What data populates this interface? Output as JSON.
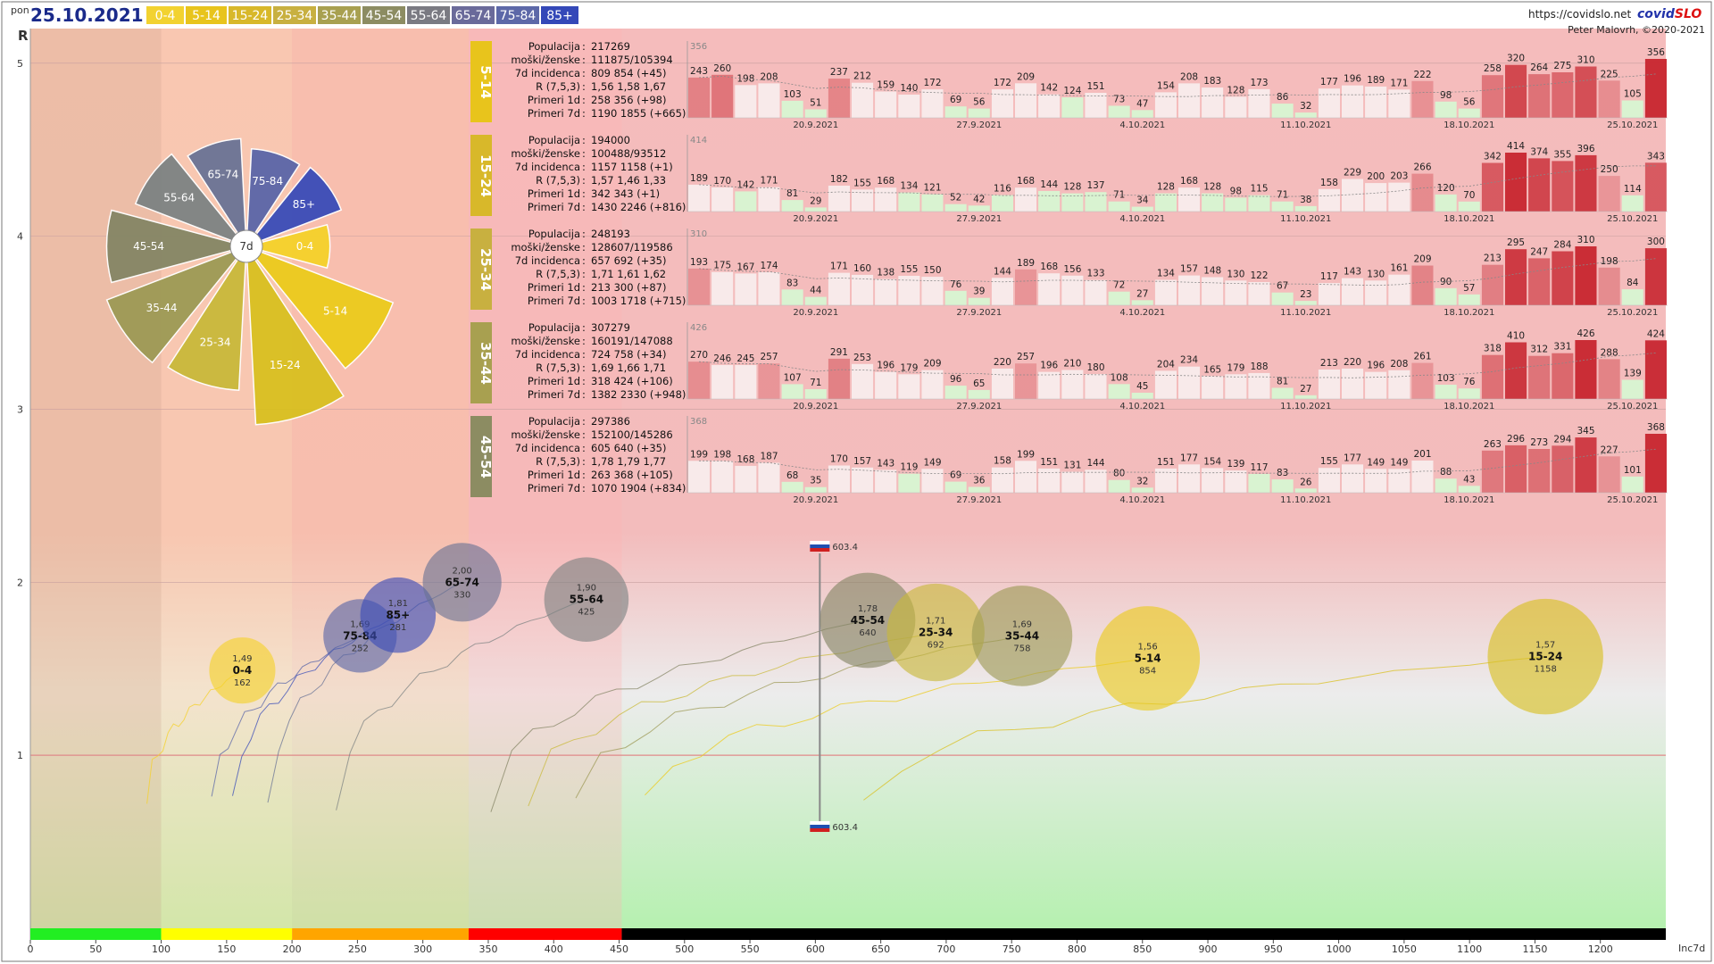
{
  "header": {
    "day": "pon",
    "date": "25.10.2021",
    "url": "https://covidslo.net",
    "brand_a": "covid",
    "brand_b": "SLO",
    "author": "Peter Malovrh, ©2020-2021"
  },
  "legend": [
    {
      "label": "0-4",
      "color": "#f2d230"
    },
    {
      "label": "5-14",
      "color": "#e8c41c"
    },
    {
      "label": "15-24",
      "color": "#d8b82a"
    },
    {
      "label": "25-34",
      "color": "#c8b040"
    },
    {
      "label": "35-44",
      "color": "#a8a050"
    },
    {
      "label": "45-54",
      "color": "#8c8c62"
    },
    {
      "label": "55-64",
      "color": "#7a7a82"
    },
    {
      "label": "65-74",
      "color": "#6a6a9a"
    },
    {
      "label": "75-84",
      "color": "#5d68a8"
    },
    {
      "label": "85+",
      "color": "#3448b8"
    }
  ],
  "rose": {
    "center_label": "7d",
    "sectors": [
      {
        "label": "0-4",
        "value": 162,
        "color": "#f5d22a"
      },
      {
        "label": "5-14",
        "value": 854,
        "color": "#eccb1c"
      },
      {
        "label": "15-24",
        "value": 1158,
        "color": "#d9c020"
      },
      {
        "label": "25-34",
        "value": 692,
        "color": "#c9b93a"
      },
      {
        "label": "35-44",
        "value": 758,
        "color": "#9d9a55"
      },
      {
        "label": "45-54",
        "value": 640,
        "color": "#858665"
      },
      {
        "label": "55-64",
        "value": 425,
        "color": "#7d8383"
      },
      {
        "label": "65-74",
        "value": 330,
        "color": "#6a7395"
      },
      {
        "label": "75-84",
        "value": 252,
        "color": "#5a66a8"
      },
      {
        "label": "85+",
        "value": 281,
        "color": "#3a4cb8"
      }
    ]
  },
  "panels": [
    {
      "label": "5-14",
      "color": "#e8c41c",
      "lines": [
        [
          "Populacija",
          "217269"
        ],
        [
          "moški/ženske",
          "111875/105394"
        ],
        [
          "7d incidenca",
          "809 854 (+45)"
        ],
        [
          "R (7,5,3)",
          "1,56 1,58 1,67"
        ],
        [
          "Primeri 1d",
          "258 356 (+98)"
        ],
        [
          "Primeri 7d",
          "1190 1855 (+665)"
        ]
      ],
      "max_label": "356",
      "values": [
        243,
        260,
        198,
        208,
        103,
        51,
        237,
        212,
        159,
        140,
        172,
        69,
        56,
        172,
        209,
        142,
        124,
        151,
        73,
        47,
        154,
        208,
        183,
        128,
        173,
        86,
        32,
        177,
        196,
        189,
        171,
        222,
        98,
        56,
        258,
        320,
        264,
        275,
        310,
        225,
        105,
        356
      ]
    },
    {
      "label": "15-24",
      "color": "#d8b82a",
      "lines": [
        [
          "Populacija",
          "194000"
        ],
        [
          "moški/ženske",
          "100488/93512"
        ],
        [
          "7d incidenca",
          "1157 1158 (+1)"
        ],
        [
          "R (7,5,3)",
          "1,57 1,46 1,33"
        ],
        [
          "Primeri 1d",
          "342 343 (+1)"
        ],
        [
          "Primeri 7d",
          "1430 2246 (+816)"
        ]
      ],
      "max_label": "414",
      "values": [
        189,
        170,
        142,
        171,
        81,
        29,
        182,
        155,
        168,
        134,
        121,
        52,
        42,
        116,
        168,
        144,
        128,
        137,
        71,
        34,
        128,
        168,
        128,
        98,
        115,
        71,
        38,
        158,
        229,
        200,
        203,
        266,
        120,
        70,
        342,
        414,
        374,
        355,
        396,
        250,
        114,
        343
      ]
    },
    {
      "label": "25-34",
      "color": "#c8b040",
      "lines": [
        [
          "Populacija",
          "248193"
        ],
        [
          "moški/ženske",
          "128607/119586"
        ],
        [
          "7d incidenca",
          "657 692 (+35)"
        ],
        [
          "R (7,5,3)",
          "1,71 1,61 1,62"
        ],
        [
          "Primeri 1d",
          "213 300 (+87)"
        ],
        [
          "Primeri 7d",
          "1003 1718 (+715)"
        ]
      ],
      "max_label": "310",
      "values": [
        193,
        175,
        167,
        174,
        83,
        44,
        171,
        160,
        138,
        155,
        150,
        76,
        39,
        144,
        189,
        168,
        156,
        133,
        72,
        27,
        134,
        157,
        148,
        130,
        122,
        67,
        23,
        117,
        143,
        130,
        161,
        209,
        90,
        57,
        213,
        295,
        247,
        284,
        310,
        198,
        84,
        300
      ]
    },
    {
      "label": "35-44",
      "color": "#a8a050",
      "lines": [
        [
          "Populacija",
          "307279"
        ],
        [
          "moški/ženske",
          "160191/147088"
        ],
        [
          "7d incidenca",
          "724 758 (+34)"
        ],
        [
          "R (7,5,3)",
          "1,69 1,66 1,71"
        ],
        [
          "Primeri 1d",
          "318 424 (+106)"
        ],
        [
          "Primeri 7d",
          "1382 2330 (+948)"
        ]
      ],
      "max_label": "426",
      "values": [
        270,
        246,
        245,
        257,
        107,
        71,
        291,
        253,
        196,
        179,
        209,
        96,
        65,
        220,
        257,
        196,
        210,
        180,
        108,
        45,
        204,
        234,
        165,
        179,
        188,
        81,
        27,
        213,
        220,
        196,
        208,
        261,
        103,
        76,
        318,
        410,
        312,
        331,
        426,
        288,
        139,
        424
      ]
    },
    {
      "label": "45-54",
      "color": "#8c8c62",
      "lines": [
        [
          "Populacija",
          "297386"
        ],
        [
          "moški/ženske",
          "152100/145286"
        ],
        [
          "7d incidenca",
          "605 640 (+35)"
        ],
        [
          "R (7,5,3)",
          "1,78 1,79 1,77"
        ],
        [
          "Primeri 1d",
          "263 368 (+105)"
        ],
        [
          "Primeri 7d",
          "1070 1904 (+834)"
        ]
      ],
      "max_label": "368",
      "values": [
        199,
        198,
        168,
        187,
        68,
        35,
        170,
        157,
        143,
        119,
        149,
        69,
        36,
        158,
        199,
        151,
        131,
        144,
        80,
        32,
        151,
        177,
        154,
        139,
        117,
        83,
        26,
        155,
        177,
        149,
        149,
        201,
        88,
        43,
        263,
        296,
        273,
        294,
        345,
        227,
        101,
        368
      ]
    }
  ],
  "panel_dates": [
    "20.9.2021",
    "27.9.2021",
    "4.10.2021",
    "11.10.2021",
    "18.10.2021",
    "25.10.2021"
  ],
  "chart_data": {
    "type": "scatter",
    "title": "",
    "xlabel": "Inc7d",
    "ylabel": "R",
    "xlim": [
      0,
      1250
    ],
    "ylim": [
      0,
      5.2
    ],
    "x_ticks": [
      0,
      50,
      100,
      150,
      200,
      250,
      300,
      350,
      400,
      450,
      500,
      550,
      600,
      650,
      700,
      750,
      800,
      850,
      900,
      950,
      1000,
      1050,
      1100,
      1150,
      1200
    ],
    "y_ticks": [
      1,
      2,
      3,
      4,
      5
    ],
    "reference_line": {
      "x": 603.4,
      "label": "603.4"
    },
    "zones": [
      {
        "from": 0,
        "to": 100,
        "color": "#22ee22"
      },
      {
        "from": 100,
        "to": 200,
        "color": "#ffff00"
      },
      {
        "from": 200,
        "to": 335,
        "color": "#ffa500"
      },
      {
        "from": 335,
        "to": 452,
        "color": "#ff0000"
      },
      {
        "from": 452,
        "to": 1250,
        "color": "#000000"
      }
    ],
    "series": [
      {
        "name": "0-4",
        "x": 162,
        "y": 1.49,
        "r_label": "1,49",
        "inc_label": "162",
        "color": "#f5d22a"
      },
      {
        "name": "75-84",
        "x": 252,
        "y": 1.69,
        "r_label": "1,69",
        "inc_label": "252",
        "color": "#5a66a8"
      },
      {
        "name": "85+",
        "x": 281,
        "y": 1.81,
        "r_label": "1,81",
        "inc_label": "281",
        "color": "#3a4cb8"
      },
      {
        "name": "65-74",
        "x": 330,
        "y": 2.0,
        "r_label": "2,00",
        "inc_label": "330",
        "color": "#6a7395"
      },
      {
        "name": "55-64",
        "x": 425,
        "y": 1.9,
        "r_label": "1,90",
        "inc_label": "425",
        "color": "#7d8383"
      },
      {
        "name": "45-54",
        "x": 640,
        "y": 1.78,
        "r_label": "1,78",
        "inc_label": "640",
        "color": "#858665"
      },
      {
        "name": "25-34",
        "x": 692,
        "y": 1.71,
        "r_label": "1,71",
        "inc_label": "692",
        "color": "#c9b93a"
      },
      {
        "name": "35-44",
        "x": 758,
        "y": 1.69,
        "r_label": "1,69",
        "inc_label": "758",
        "color": "#9d9a55"
      },
      {
        "name": "5-14",
        "x": 854,
        "y": 1.56,
        "r_label": "1,56",
        "inc_label": "854",
        "color": "#eccb1c"
      },
      {
        "name": "15-24",
        "x": 1158,
        "y": 1.57,
        "r_label": "1,57",
        "inc_label": "1158",
        "color": "#d9c020"
      }
    ]
  }
}
